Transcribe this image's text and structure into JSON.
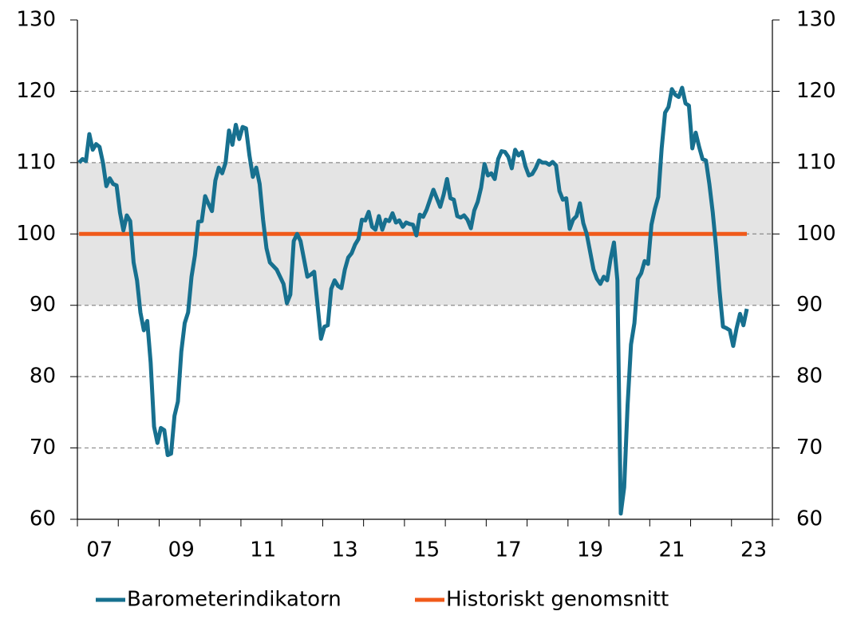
{
  "chart_data": {
    "type": "line",
    "categories": [
      null,
      null,
      null,
      null,
      null,
      null,
      "07",
      null,
      null,
      null,
      null,
      null,
      null,
      null,
      null,
      null,
      null,
      null,
      null,
      null,
      null,
      null,
      null,
      null,
      null,
      null,
      null,
      null,
      null,
      null,
      "09",
      null,
      null,
      null,
      null,
      null,
      null,
      null,
      null,
      null,
      null,
      null,
      null,
      null,
      null,
      null,
      null,
      null,
      null,
      null,
      null,
      null,
      null,
      null,
      "11",
      null,
      null,
      null,
      null,
      null,
      null,
      null,
      null,
      null,
      null,
      null,
      null,
      null,
      null,
      null,
      null,
      null,
      null,
      null,
      null,
      null,
      null,
      null,
      "13",
      null,
      null,
      null,
      null,
      null,
      null,
      null,
      null,
      null,
      null,
      null,
      null,
      null,
      null,
      null,
      null,
      null,
      null,
      null,
      null,
      null,
      null,
      null,
      "15",
      null,
      null,
      null,
      null,
      null,
      null,
      null,
      null,
      null,
      null,
      null,
      null,
      null,
      null,
      null,
      null,
      null,
      null,
      null,
      null,
      null,
      null,
      null,
      "17",
      null,
      null,
      null,
      null,
      null,
      null,
      null,
      null,
      null,
      null,
      null,
      null,
      null,
      null,
      null,
      null,
      null,
      null,
      null,
      null,
      null,
      null,
      null,
      "19",
      null,
      null,
      null,
      null,
      null,
      null,
      null,
      null,
      null,
      null,
      null,
      null,
      null,
      null,
      null,
      null,
      null,
      null,
      null,
      null,
      null,
      null,
      null,
      "21",
      null,
      null,
      null,
      null,
      null,
      null,
      null,
      null,
      null,
      null,
      null,
      null,
      null,
      null,
      null,
      null,
      null,
      null,
      null,
      null,
      null,
      null,
      null,
      "23",
      null,
      null,
      null,
      null,
      null
    ],
    "series": [
      {
        "name": "Barometerindikatorn",
        "color": "#17708f",
        "values": [
          110,
          110.5,
          110.2,
          114,
          111.8,
          112.6,
          112.2,
          110,
          106.7,
          107.8,
          107,
          106.8,
          103,
          100.5,
          102.6,
          101.8,
          96,
          93.5,
          89,
          86.5,
          87.8,
          82,
          73,
          70.7,
          72.8,
          72.5,
          69,
          69.2,
          74.5,
          76.5,
          83.5,
          87.5,
          89,
          94,
          97,
          101.7,
          101.8,
          105.3,
          104.2,
          103.2,
          107.5,
          109.3,
          108.5,
          110,
          114.5,
          112.5,
          115.3,
          113.3,
          115,
          114.8,
          111,
          108,
          109.3,
          107,
          102,
          98,
          96,
          95.5,
          95,
          94,
          93,
          90.3,
          91.5,
          99,
          100,
          99,
          96.5,
          94,
          94.3,
          94.7,
          90,
          85.3,
          87,
          87.2,
          92.3,
          93.5,
          92.7,
          92.4,
          95,
          96.7,
          97.3,
          98.5,
          99.3,
          102,
          101.9,
          103.1,
          101,
          100.6,
          102.5,
          100.6,
          102,
          101.8,
          102.9,
          101.6,
          101.9,
          101,
          101.6,
          101.4,
          101.3,
          99.8,
          102.7,
          102.4,
          103.4,
          104.8,
          106.2,
          105,
          103.8,
          105.5,
          107.7,
          105,
          104.8,
          102.5,
          102.3,
          102.6,
          102,
          100.8,
          103.3,
          104.5,
          106.5,
          109.8,
          108.2,
          108.5,
          107.7,
          110.5,
          111.6,
          111.5,
          110.8,
          109.2,
          111.8,
          111,
          111.5,
          109.5,
          108.2,
          108.4,
          109.2,
          110.3,
          110,
          110,
          109.7,
          110.1,
          109.6,
          106,
          104.8,
          105,
          100.7,
          102,
          102.5,
          104.3,
          101.5,
          100,
          97.5,
          95,
          93.7,
          93,
          94,
          93.5,
          96.5,
          98.8,
          93.5,
          60.8,
          64.5,
          76,
          84.5,
          87.5,
          93.7,
          94.5,
          96.2,
          95.8,
          101.3,
          103.5,
          105.2,
          112,
          117,
          117.8,
          120.3,
          119.5,
          119.2,
          120.5,
          118.3,
          118,
          112,
          114.2,
          112.2,
          110.5,
          110.3,
          107,
          103,
          98,
          92,
          87,
          86.8,
          86.5,
          84.3,
          86.8,
          88.8,
          87.2,
          89.5,
          null,
          null,
          null,
          null,
          null,
          null,
          null
        ]
      },
      {
        "name": "Historiskt genomsnitt",
        "color": "#f05a1a",
        "values": [
          100,
          100,
          100,
          100,
          100,
          100,
          100,
          100,
          100,
          100,
          100,
          100,
          100,
          100,
          100,
          100,
          100,
          100,
          100,
          100,
          100,
          100,
          100,
          100,
          100,
          100,
          100,
          100,
          100,
          100,
          100,
          100,
          100,
          100,
          100,
          100,
          100,
          100,
          100,
          100,
          100,
          100,
          100,
          100,
          100,
          100,
          100,
          100,
          100,
          100,
          100,
          100,
          100,
          100,
          100,
          100,
          100,
          100,
          100,
          100,
          100,
          100,
          100,
          100,
          100,
          100,
          100,
          100,
          100,
          100,
          100,
          100,
          100,
          100,
          100,
          100,
          100,
          100,
          100,
          100,
          100,
          100,
          100,
          100,
          100,
          100,
          100,
          100,
          100,
          100,
          100,
          100,
          100,
          100,
          100,
          100,
          100,
          100,
          100,
          100,
          100,
          100,
          100,
          100,
          100,
          100,
          100,
          100,
          100,
          100,
          100,
          100,
          100,
          100,
          100,
          100,
          100,
          100,
          100,
          100,
          100,
          100,
          100,
          100,
          100,
          100,
          100,
          100,
          100,
          100,
          100,
          100,
          100,
          100,
          100,
          100,
          100,
          100,
          100,
          100,
          100,
          100,
          100,
          100,
          100,
          100,
          100,
          100,
          100,
          100,
          100,
          100,
          100,
          100,
          100,
          100,
          100,
          100,
          100,
          100,
          100,
          100,
          100,
          100,
          100,
          100,
          100,
          100,
          100,
          100,
          100,
          100,
          100,
          100,
          100,
          100,
          100,
          100,
          100,
          100,
          100,
          100,
          100,
          100,
          100,
          100,
          100,
          100,
          100,
          100,
          100,
          100,
          100,
          100,
          100,
          100,
          100,
          null,
          null,
          null,
          null,
          null,
          null,
          null
        ]
      }
    ],
    "ylim": [
      60,
      130
    ],
    "yticks": [
      60,
      70,
      80,
      90,
      100,
      110,
      120,
      130
    ],
    "y2lim": [
      60,
      130
    ],
    "y2ticks": [
      60,
      70,
      80,
      90,
      100,
      110,
      120,
      130
    ],
    "shaded_range": [
      90,
      110
    ],
    "shade_color": "#e4e4e4",
    "grid": true,
    "legend": "bottom"
  }
}
